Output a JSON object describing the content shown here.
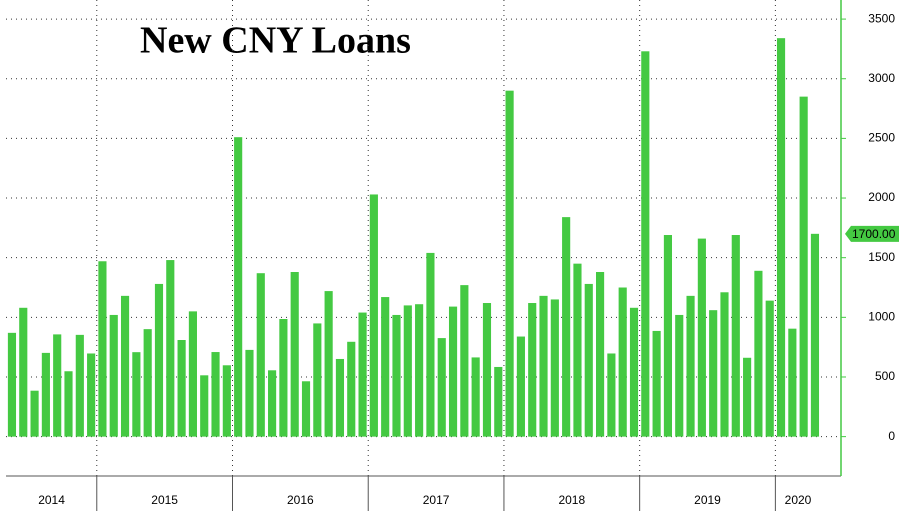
{
  "chart_data": {
    "type": "bar",
    "title": "New CNY Loans",
    "categories": [
      "2014",
      "2014",
      "2014",
      "2014",
      "2014",
      "2014",
      "2014",
      "2014",
      "2015",
      "2015",
      "2015",
      "2015",
      "2015",
      "2015",
      "2015",
      "2015",
      "2015",
      "2015",
      "2015",
      "2015",
      "2016",
      "2016",
      "2016",
      "2016",
      "2016",
      "2016",
      "2016",
      "2016",
      "2016",
      "2016",
      "2016",
      "2016",
      "2017",
      "2017",
      "2017",
      "2017",
      "2017",
      "2017",
      "2017",
      "2017",
      "2017",
      "2017",
      "2017",
      "2017",
      "2018",
      "2018",
      "2018",
      "2018",
      "2018",
      "2018",
      "2018",
      "2018",
      "2018",
      "2018",
      "2018",
      "2018",
      "2019",
      "2019",
      "2019",
      "2019",
      "2019",
      "2019",
      "2019",
      "2019",
      "2019",
      "2019",
      "2019",
      "2019",
      "2020",
      "2020",
      "2020",
      "2020"
    ],
    "values": [
      870,
      1080,
      385,
      702,
      857,
      548,
      853,
      697,
      1470,
      1020,
      1180,
      708,
      901,
      1280,
      1480,
      810,
      1050,
      514,
      709,
      598,
      2510,
      727,
      1370,
      556,
      986,
      1380,
      464,
      949,
      1220,
      651,
      795,
      1040,
      2030,
      1170,
      1020,
      1100,
      1110,
      1540,
      826,
      1090,
      1270,
      664,
      1120,
      584,
      2900,
      839,
      1120,
      1180,
      1150,
      1840,
      1450,
      1280,
      1380,
      697,
      1250,
      1080,
      3230,
      886,
      1690,
      1020,
      1180,
      1660,
      1060,
      1210,
      1690,
      661,
      1390,
      1140,
      3340,
      905,
      2850,
      1700
    ],
    "value_labels": [
      null,
      null,
      null,
      null,
      null,
      null,
      null,
      null,
      null,
      null,
      null,
      null,
      null,
      null,
      null,
      null,
      null,
      null,
      null,
      null,
      null,
      null,
      null,
      null,
      null,
      null,
      null,
      null,
      null,
      null,
      null,
      null,
      null,
      null,
      null,
      null,
      null,
      null,
      null,
      null,
      null,
      null,
      null,
      null,
      null,
      null,
      null,
      null,
      null,
      null,
      null,
      null,
      null,
      null,
      null,
      null,
      null,
      null,
      null,
      null,
      null,
      null,
      null,
      null,
      null,
      null,
      null,
      null,
      null,
      null,
      null,
      "1700.00"
    ],
    "color": "#44c942",
    "ylim": [
      -330,
      3660
    ],
    "yticks": [
      0,
      500,
      1000,
      1500,
      2000,
      2500,
      3000,
      3500
    ],
    "grid": true
  }
}
